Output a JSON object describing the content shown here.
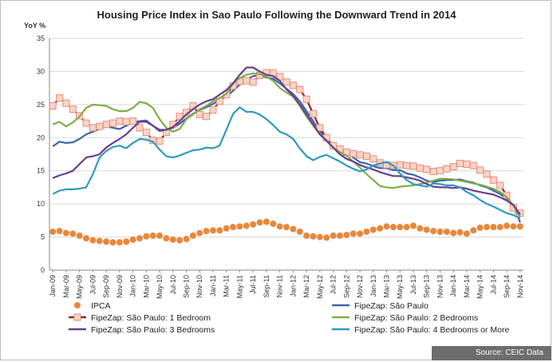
{
  "chart_data": {
    "type": "line",
    "title": "Housing Price Index in Sao Paulo Following the Downward Trend in 2014",
    "ylabel": "YoY %",
    "ylim": [
      0,
      35
    ],
    "yticks": [
      0,
      5,
      10,
      15,
      20,
      25,
      30,
      35
    ],
    "grid": true,
    "legend_position": "bottom",
    "source": "Source: CEIC Data",
    "x": [
      "Jan-09",
      "Feb-09",
      "Mar-09",
      "Apr-09",
      "May-09",
      "Jun-09",
      "Jul-09",
      "Aug-09",
      "Sep-09",
      "Oct-09",
      "Nov-09",
      "Dec-09",
      "Jan-10",
      "Feb-10",
      "Mar-10",
      "Apr-10",
      "May-10",
      "Jun-10",
      "Jul-10",
      "Aug-10",
      "Sep-10",
      "Oct-10",
      "Nov-10",
      "Dec-10",
      "Jan-11",
      "Feb-11",
      "Mar-11",
      "Apr-11",
      "May-11",
      "Jun-11",
      "Jul-11",
      "Aug-11",
      "Sep-11",
      "Oct-11",
      "Nov-11",
      "Dec-11",
      "Jan-12",
      "Feb-12",
      "Mar-12",
      "Apr-12",
      "May-12",
      "Jun-12",
      "Jul-12",
      "Aug-12",
      "Sep-12",
      "Oct-12",
      "Nov-12",
      "Dec-12",
      "Jan-13",
      "Feb-13",
      "Mar-13",
      "Apr-13",
      "May-13",
      "Jun-13",
      "Jul-13",
      "Aug-13",
      "Sep-13",
      "Oct-13",
      "Nov-13",
      "Dec-13",
      "Jan-14",
      "Feb-14",
      "Mar-14",
      "Apr-14",
      "May-14",
      "Jun-14",
      "Jul-14",
      "Aug-14",
      "Sep-14",
      "Oct-14",
      "Nov-14"
    ],
    "x_tick_labels": [
      "Jan-09",
      "Mar-09",
      "May-09",
      "Jul-09",
      "Sep-09",
      "Nov-09",
      "Jan-10",
      "Mar-10",
      "May-10",
      "Jul-10",
      "Sep-10",
      "Nov-10",
      "Jan-11",
      "Mar-11",
      "May-11",
      "Jul-11",
      "Sep-11",
      "Nov-11",
      "Jan-12",
      "Mar-12",
      "May-12",
      "Jul-12",
      "Sep-12",
      "Nov-12",
      "Jan-13",
      "Mar-13",
      "May-13",
      "Jul-13",
      "Sep-13",
      "Nov-13",
      "Jan-14",
      "Mar-14",
      "May-14",
      "Jul-14",
      "Sep-14",
      "Nov-14"
    ],
    "series": [
      {
        "name": "IPCA",
        "color": "#E8873A",
        "style": "dots",
        "values": [
          5.8,
          5.9,
          5.6,
          5.5,
          5.2,
          4.8,
          4.5,
          4.4,
          4.3,
          4.2,
          4.2,
          4.3,
          4.6,
          4.8,
          5.1,
          5.2,
          5.2,
          4.8,
          4.6,
          4.5,
          4.7,
          5.2,
          5.6,
          5.9,
          6.0,
          6.0,
          6.3,
          6.5,
          6.6,
          6.7,
          6.9,
          7.2,
          7.3,
          7.0,
          6.6,
          6.5,
          6.2,
          5.8,
          5.2,
          5.1,
          5.0,
          4.9,
          5.2,
          5.2,
          5.3,
          5.5,
          5.5,
          5.8,
          6.1,
          6.3,
          6.6,
          6.5,
          6.5,
          6.5,
          6.7,
          6.3,
          6.1,
          5.9,
          5.8,
          5.8,
          5.6,
          5.7,
          5.5,
          6.0,
          6.4,
          6.5,
          6.5,
          6.5,
          6.7,
          6.6,
          6.6
        ]
      },
      {
        "name": "FipeZap:  São Paulo",
        "color": "#3B64AD",
        "style": "line",
        "values": [
          18.7,
          19.4,
          19.2,
          19.3,
          19.8,
          20.5,
          20.9,
          21.3,
          21.7,
          21.5,
          21.3,
          21.8,
          22.3,
          22.5,
          22.6,
          21.8,
          21.2,
          21.2,
          21.5,
          22.1,
          22.9,
          23.6,
          24.2,
          24.6,
          25.1,
          25.7,
          26.2,
          27.1,
          28.0,
          28.8,
          29.3,
          29.4,
          29.1,
          28.9,
          28.2,
          27.4,
          26.6,
          25.5,
          24.0,
          22.5,
          21.0,
          19.7,
          18.8,
          18.3,
          17.7,
          17.0,
          16.3,
          16.1,
          15.7,
          15.4,
          15.4,
          15.1,
          15.1,
          14.6,
          14.4,
          14.0,
          13.5,
          13.3,
          13.5,
          13.6,
          13.6,
          13.7,
          13.4,
          13.2,
          12.8,
          12.5,
          12.0,
          11.5,
          10.8,
          9.8,
          7.2
        ]
      },
      {
        "name": "FipeZap:  São Paulo: 1 Bedroom",
        "color": "#8B2A26",
        "style": "line-square",
        "values": [
          24.8,
          26.0,
          25.2,
          24.3,
          23.3,
          22.2,
          21.5,
          21.7,
          22.0,
          22.2,
          22.5,
          22.4,
          22.5,
          21.5,
          20.8,
          19.6,
          19.5,
          20.8,
          22.0,
          23.2,
          23.8,
          24.8,
          23.5,
          23.2,
          24.2,
          25.5,
          26.5,
          27.8,
          28.5,
          28.6,
          28.4,
          29.4,
          29.8,
          29.8,
          29.2,
          28.4,
          27.9,
          27.3,
          25.8,
          23.6,
          21.5,
          20.0,
          18.8,
          18.3,
          17.8,
          17.6,
          17.4,
          17.2,
          16.8,
          16.2,
          15.9,
          15.8,
          15.9,
          15.8,
          15.7,
          15.4,
          15.2,
          14.9,
          15.0,
          15.3,
          15.6,
          16.1,
          16.0,
          15.8,
          15.1,
          14.5,
          13.6,
          12.8,
          11.3,
          9.4,
          8.6
        ]
      },
      {
        "name": "FipeZap:  São Paulo: 2 Bedrooms",
        "color": "#7FAE46",
        "style": "line",
        "values": [
          22.0,
          22.4,
          21.7,
          22.3,
          23.2,
          24.5,
          25.0,
          24.9,
          24.8,
          24.3,
          24.0,
          24.0,
          24.5,
          25.4,
          25.2,
          24.5,
          22.8,
          21.5,
          20.9,
          21.3,
          22.8,
          23.5,
          24.3,
          24.8,
          25.5,
          26.0,
          26.6,
          28.2,
          29.0,
          29.5,
          29.7,
          29.6,
          29.2,
          28.6,
          27.5,
          26.8,
          26.2,
          24.8,
          23.2,
          21.8,
          20.5,
          19.6,
          18.5,
          17.8,
          17.3,
          16.4,
          15.5,
          14.5,
          13.6,
          12.7,
          12.5,
          12.4,
          12.6,
          12.7,
          12.8,
          13.0,
          13.2,
          13.5,
          13.8,
          13.8,
          13.7,
          13.5,
          13.3,
          13.1,
          12.9,
          12.6,
          12.3,
          11.8,
          11.0,
          9.8,
          8.0
        ]
      },
      {
        "name": "FipeZap:  São Paulo: 3 Bedrooms",
        "color": "#6A3D8F",
        "style": "line",
        "values": [
          13.9,
          14.3,
          14.6,
          15.0,
          16.0,
          17.0,
          17.2,
          17.5,
          18.5,
          19.2,
          19.8,
          20.5,
          21.5,
          22.4,
          22.4,
          21.8,
          21.0,
          21.2,
          21.6,
          22.5,
          23.5,
          24.3,
          25.0,
          25.5,
          25.8,
          26.5,
          27.2,
          28.2,
          29.5,
          30.6,
          30.6,
          30.0,
          29.5,
          29.3,
          28.6,
          27.3,
          26.3,
          25.0,
          23.5,
          22.0,
          20.5,
          19.5,
          18.5,
          17.5,
          16.8,
          16.4,
          15.9,
          15.5,
          15.2,
          14.8,
          14.5,
          14.2,
          14.2,
          14.0,
          13.8,
          13.5,
          13.0,
          12.6,
          12.5,
          12.5,
          12.4,
          12.5,
          12.3,
          12.0,
          11.8,
          11.6,
          11.4,
          11.0,
          10.5,
          9.8,
          8.4
        ]
      },
      {
        "name": "FipeZap:  São Paulo: 4 Bedrooms or More",
        "color": "#2E9BBE",
        "style": "line",
        "values": [
          11.5,
          12.0,
          12.2,
          12.2,
          12.3,
          12.5,
          14.5,
          17.0,
          18.0,
          18.6,
          18.8,
          18.4,
          19.2,
          19.8,
          19.7,
          19.4,
          18.2,
          17.2,
          17.0,
          17.3,
          17.7,
          18.1,
          18.2,
          18.5,
          18.4,
          18.8,
          21.2,
          23.6,
          24.6,
          23.9,
          23.9,
          23.5,
          22.8,
          21.9,
          20.9,
          20.5,
          19.8,
          18.4,
          17.2,
          16.6,
          17.1,
          17.4,
          16.9,
          16.4,
          15.8,
          15.3,
          14.9,
          15.2,
          15.8,
          16.1,
          16.3,
          15.8,
          14.6,
          13.6,
          13.0,
          12.8,
          12.6,
          13.1,
          13.0,
          12.8,
          12.8,
          12.5,
          11.8,
          11.3,
          10.6,
          10.0,
          9.6,
          9.1,
          8.6,
          8.3,
          7.8
        ]
      }
    ]
  }
}
